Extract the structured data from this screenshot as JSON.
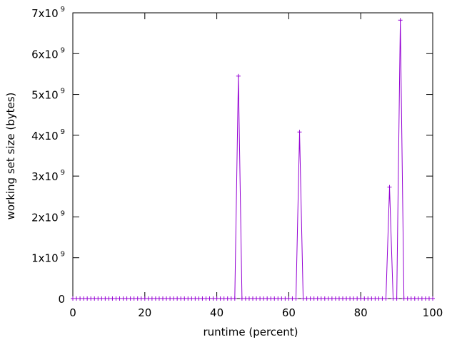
{
  "chart_data": {
    "type": "line",
    "xlabel": "runtime (percent)",
    "ylabel": "working set size (bytes)",
    "xlim": [
      0,
      100
    ],
    "ylim": [
      0,
      7000000000
    ],
    "x_ticks": [
      {
        "value": 0,
        "label": "0"
      },
      {
        "value": 20,
        "label": "20"
      },
      {
        "value": 40,
        "label": "40"
      },
      {
        "value": 60,
        "label": "60"
      },
      {
        "value": 80,
        "label": "80"
      },
      {
        "value": 100,
        "label": "100"
      }
    ],
    "y_ticks": [
      {
        "value": 0,
        "mantissa": "0",
        "base": "",
        "exponent": ""
      },
      {
        "value": 1000000000,
        "mantissa": "1x10",
        "base": "",
        "exponent": "9"
      },
      {
        "value": 2000000000,
        "mantissa": "2x10",
        "base": "",
        "exponent": "9"
      },
      {
        "value": 3000000000,
        "mantissa": "3x10",
        "base": "",
        "exponent": "9"
      },
      {
        "value": 4000000000,
        "mantissa": "4x10",
        "base": "",
        "exponent": "9"
      },
      {
        "value": 5000000000,
        "mantissa": "5x10",
        "base": "",
        "exponent": "9"
      },
      {
        "value": 6000000000,
        "mantissa": "6x10",
        "base": "",
        "exponent": "9"
      },
      {
        "value": 7000000000,
        "mantissa": "7x10",
        "base": "",
        "exponent": "9"
      }
    ],
    "grid": false,
    "legend": "none",
    "series": [
      {
        "color": "#9400d3",
        "marker": "plus",
        "x_step": 1,
        "points": [
          [
            0,
            0
          ],
          [
            1,
            0
          ],
          [
            2,
            0
          ],
          [
            3,
            0
          ],
          [
            4,
            0
          ],
          [
            5,
            0
          ],
          [
            6,
            0
          ],
          [
            7,
            0
          ],
          [
            8,
            0
          ],
          [
            9,
            0
          ],
          [
            10,
            0
          ],
          [
            11,
            0
          ],
          [
            12,
            0
          ],
          [
            13,
            0
          ],
          [
            14,
            0
          ],
          [
            15,
            0
          ],
          [
            16,
            0
          ],
          [
            17,
            0
          ],
          [
            18,
            0
          ],
          [
            19,
            0
          ],
          [
            20,
            0
          ],
          [
            21,
            0
          ],
          [
            22,
            0
          ],
          [
            23,
            0
          ],
          [
            24,
            0
          ],
          [
            25,
            0
          ],
          [
            26,
            0
          ],
          [
            27,
            0
          ],
          [
            28,
            0
          ],
          [
            29,
            0
          ],
          [
            30,
            0
          ],
          [
            31,
            0
          ],
          [
            32,
            0
          ],
          [
            33,
            0
          ],
          [
            34,
            0
          ],
          [
            35,
            0
          ],
          [
            36,
            0
          ],
          [
            37,
            0
          ],
          [
            38,
            0
          ],
          [
            39,
            0
          ],
          [
            40,
            0
          ],
          [
            41,
            0
          ],
          [
            42,
            0
          ],
          [
            43,
            0
          ],
          [
            44,
            0
          ],
          [
            45,
            0
          ],
          [
            46,
            5450000000
          ],
          [
            47,
            0
          ],
          [
            48,
            0
          ],
          [
            49,
            0
          ],
          [
            50,
            0
          ],
          [
            51,
            0
          ],
          [
            52,
            0
          ],
          [
            53,
            0
          ],
          [
            54,
            0
          ],
          [
            55,
            0
          ],
          [
            56,
            0
          ],
          [
            57,
            0
          ],
          [
            58,
            0
          ],
          [
            59,
            0
          ],
          [
            60,
            0
          ],
          [
            61,
            0
          ],
          [
            62,
            0
          ],
          [
            63,
            4080000000
          ],
          [
            64,
            0
          ],
          [
            65,
            0
          ],
          [
            66,
            0
          ],
          [
            67,
            0
          ],
          [
            68,
            0
          ],
          [
            69,
            0
          ],
          [
            70,
            0
          ],
          [
            71,
            0
          ],
          [
            72,
            0
          ],
          [
            73,
            0
          ],
          [
            74,
            0
          ],
          [
            75,
            0
          ],
          [
            76,
            0
          ],
          [
            77,
            0
          ],
          [
            78,
            0
          ],
          [
            79,
            0
          ],
          [
            80,
            0
          ],
          [
            81,
            0
          ],
          [
            82,
            0
          ],
          [
            83,
            0
          ],
          [
            84,
            0
          ],
          [
            85,
            0
          ],
          [
            86,
            0
          ],
          [
            87,
            0
          ],
          [
            88,
            2730000000
          ],
          [
            89,
            0
          ],
          [
            90,
            0
          ],
          [
            91,
            6820000000
          ],
          [
            92,
            0
          ],
          [
            93,
            0
          ],
          [
            94,
            0
          ],
          [
            95,
            0
          ],
          [
            96,
            0
          ],
          [
            97,
            0
          ],
          [
            98,
            0
          ],
          [
            99,
            0
          ],
          [
            100,
            0
          ]
        ]
      }
    ]
  }
}
